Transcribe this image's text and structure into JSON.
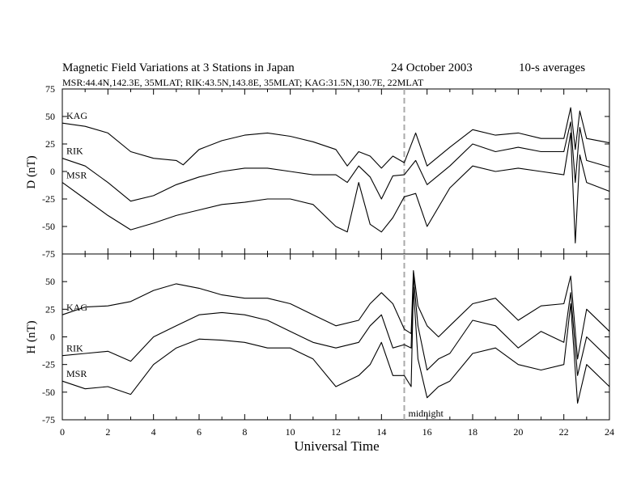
{
  "header": {
    "title": "Magnetic Field Variations at 3 Stations in Japan",
    "date": "24  October 2003",
    "averaging": "10-s averages",
    "stations": "MSR:44.4N,142.3E, 35MLAT;   RIK:43.5N,143.8E, 35MLAT;   KAG:31.5N,130.7E, 22MLAT"
  },
  "chart_data": [
    {
      "type": "line",
      "panel": "D",
      "ylabel": "D (nT)",
      "ylim": [
        -75,
        75
      ],
      "yticks": [
        "75",
        "50",
        "25",
        "0",
        "-25",
        "-50",
        "-75"
      ],
      "xlim": [
        0,
        24
      ],
      "marker": {
        "x": 15,
        "style": "dashed",
        "color": "#aaaaaa"
      },
      "series": [
        {
          "name": "KAG",
          "x": [
            0,
            1,
            2,
            3,
            4,
            5,
            5.3,
            6,
            7,
            8,
            9,
            10,
            11,
            12,
            12.5,
            13,
            13.5,
            14,
            14.5,
            15,
            15.5,
            16,
            17,
            18,
            19,
            20,
            21,
            22,
            22.3,
            22.5,
            22.7,
            23,
            24
          ],
          "values": [
            44,
            41,
            35,
            18,
            12,
            10,
            6,
            20,
            28,
            33,
            35,
            32,
            27,
            20,
            5,
            18,
            14,
            3,
            14,
            8,
            35,
            5,
            22,
            38,
            33,
            35,
            30,
            30,
            58,
            20,
            55,
            30,
            26
          ]
        },
        {
          "name": "RIK",
          "x": [
            0,
            1,
            2,
            3,
            4,
            5,
            6,
            7,
            8,
            9,
            10,
            11,
            12,
            12.5,
            13,
            13.5,
            14,
            14.5,
            15,
            15.5,
            16,
            17,
            18,
            19,
            20,
            21,
            22,
            22.3,
            22.5,
            22.7,
            23,
            24
          ],
          "values": [
            12,
            5,
            -10,
            -27,
            -22,
            -12,
            -5,
            0,
            3,
            3,
            0,
            -3,
            -3,
            -10,
            5,
            -5,
            -25,
            -4,
            -3,
            10,
            -12,
            5,
            25,
            18,
            22,
            18,
            18,
            45,
            -10,
            40,
            10,
            4
          ]
        },
        {
          "name": "MSR",
          "x": [
            0,
            1,
            2,
            3,
            4,
            5,
            6,
            7,
            8,
            9,
            10,
            11,
            12,
            12.5,
            13,
            13.5,
            14,
            14.5,
            15,
            15.5,
            16,
            17,
            18,
            19,
            20,
            21,
            22,
            22.3,
            22.5,
            22.7,
            23,
            24
          ],
          "values": [
            -10,
            -25,
            -40,
            -53,
            -47,
            -40,
            -35,
            -30,
            -28,
            -25,
            -25,
            -30,
            -50,
            -55,
            -10,
            -48,
            -55,
            -42,
            -23,
            -20,
            -50,
            -15,
            5,
            0,
            3,
            0,
            -3,
            35,
            -65,
            15,
            -10,
            -18
          ]
        }
      ]
    },
    {
      "type": "line",
      "panel": "H",
      "ylabel": "H (nT)",
      "ylim": [
        -75,
        75
      ],
      "yticks": [
        "50",
        "25",
        "0",
        "-25",
        "-50",
        "-75"
      ],
      "xlim": [
        0,
        24
      ],
      "xticks": [
        "0",
        "2",
        "4",
        "6",
        "8",
        "10",
        "12",
        "14",
        "16",
        "18",
        "20",
        "22",
        "24"
      ],
      "xlabel": "Universal Time",
      "marker": {
        "x": 15,
        "label": "midnight",
        "style": "dashed",
        "color": "#aaaaaa"
      },
      "series": [
        {
          "name": "KAG",
          "x": [
            0,
            1,
            2,
            3,
            4,
            5,
            6,
            7,
            8,
            9,
            10,
            11,
            12,
            13,
            13.5,
            14,
            14.5,
            15,
            15.3,
            15.4,
            15.6,
            16,
            16.5,
            17,
            18,
            19,
            20,
            21,
            22,
            22.3,
            22.6,
            23,
            24
          ],
          "values": [
            20,
            27,
            28,
            32,
            42,
            48,
            44,
            38,
            35,
            35,
            30,
            20,
            10,
            15,
            30,
            40,
            30,
            7,
            3,
            60,
            28,
            10,
            0,
            10,
            30,
            35,
            15,
            28,
            30,
            55,
            -20,
            25,
            5
          ]
        },
        {
          "name": "RIK",
          "x": [
            0,
            1,
            2,
            3,
            4,
            5,
            6,
            7,
            8,
            9,
            10,
            11,
            12,
            13,
            13.5,
            14,
            14.5,
            15,
            15.3,
            15.4,
            15.6,
            16,
            16.5,
            17,
            18,
            19,
            20,
            21,
            22,
            22.3,
            22.6,
            23,
            24
          ],
          "values": [
            -17,
            -15,
            -13,
            -22,
            0,
            10,
            20,
            22,
            20,
            15,
            5,
            -5,
            -10,
            -5,
            10,
            20,
            -10,
            -7,
            -10,
            55,
            10,
            -30,
            -20,
            -15,
            15,
            10,
            -10,
            5,
            -5,
            40,
            -35,
            0,
            -20
          ]
        },
        {
          "name": "MSR",
          "x": [
            0,
            1,
            2,
            3,
            4,
            5,
            6,
            7,
            8,
            9,
            10,
            11,
            12,
            13,
            13.5,
            14,
            14.5,
            15,
            15.3,
            15.4,
            15.6,
            16,
            16.5,
            17,
            18,
            19,
            20,
            21,
            22,
            22.3,
            22.6,
            23,
            24
          ],
          "values": [
            -40,
            -47,
            -45,
            -52,
            -25,
            -10,
            -2,
            -3,
            -5,
            -10,
            -10,
            -20,
            -45,
            -35,
            -25,
            -5,
            -35,
            -35,
            -45,
            45,
            -20,
            -55,
            -45,
            -40,
            -15,
            -10,
            -25,
            -30,
            -25,
            30,
            -60,
            -25,
            -45
          ]
        }
      ]
    }
  ]
}
